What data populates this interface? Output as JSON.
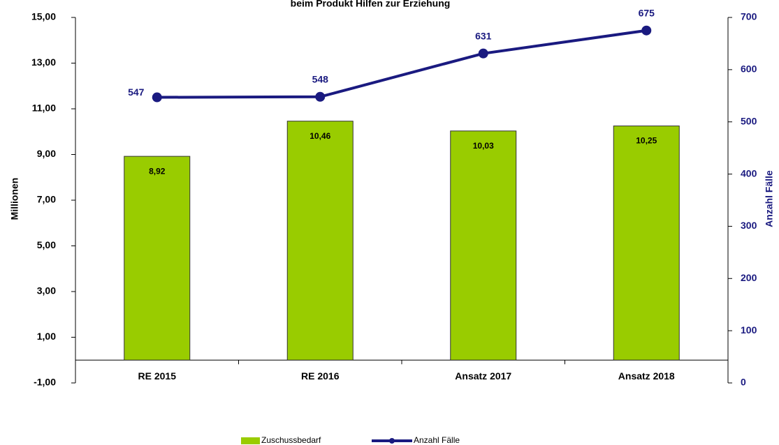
{
  "chart_data": {
    "type": "bar-line",
    "title": "beim Produkt Hilfen zur Erziehung",
    "y_label": "Millionen",
    "y2_label": "Anzahl Fälle",
    "categories": [
      "RE 2015",
      "RE 2016",
      "Ansatz 2017",
      "Ansatz 2018"
    ],
    "series": [
      {
        "name": "Zuschussbedarf",
        "type": "bar",
        "color": "#99cc00",
        "values": [
          8.92,
          10.46,
          10.03,
          10.25
        ],
        "value_labels": [
          "8,92",
          "10,46",
          "10,03",
          "10,25"
        ]
      },
      {
        "name": "Anzahl Fälle",
        "type": "line",
        "axis": "y2",
        "color": "#1a1a80",
        "values": [
          547,
          548,
          631,
          675
        ]
      }
    ],
    "ylim": [
      -1,
      15
    ],
    "yticks": [
      {
        "value": -1,
        "label": "-1,00"
      },
      {
        "value": 1,
        "label": "1,00"
      },
      {
        "value": 3,
        "label": "3,00"
      },
      {
        "value": 5,
        "label": "5,00"
      },
      {
        "value": 7,
        "label": "7,00"
      },
      {
        "value": 9,
        "label": "9,00"
      },
      {
        "value": 11,
        "label": "11,00"
      },
      {
        "value": 13,
        "label": "13,00"
      },
      {
        "value": 15,
        "label": "15,00"
      }
    ],
    "y2lim": [
      0,
      700
    ],
    "y2ticks": [
      0,
      100,
      200,
      300,
      400,
      500,
      600,
      700
    ],
    "legend": "bottom"
  }
}
